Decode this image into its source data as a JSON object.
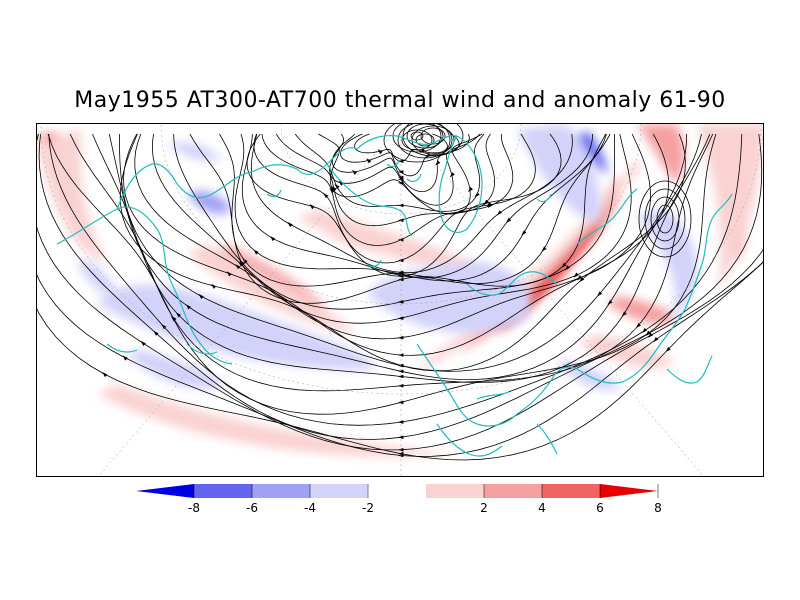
{
  "title": "May1955 AT300-AT700 thermal wind and anomaly 61-90",
  "colorbar": {
    "ticks": [
      "-8",
      "-6",
      "-4",
      "-2",
      "2",
      "4",
      "6",
      "8"
    ],
    "colors": [
      "#0000e6",
      "#6464f0",
      "#a0a0f5",
      "#d2d2fa",
      "#ffffff",
      "#fad2d2",
      "#f5a0a0",
      "#f06464",
      "#e60000"
    ]
  },
  "map_colors": {
    "coast": "#21bcbc",
    "streamline": "#000000",
    "grid": "#999999"
  }
}
